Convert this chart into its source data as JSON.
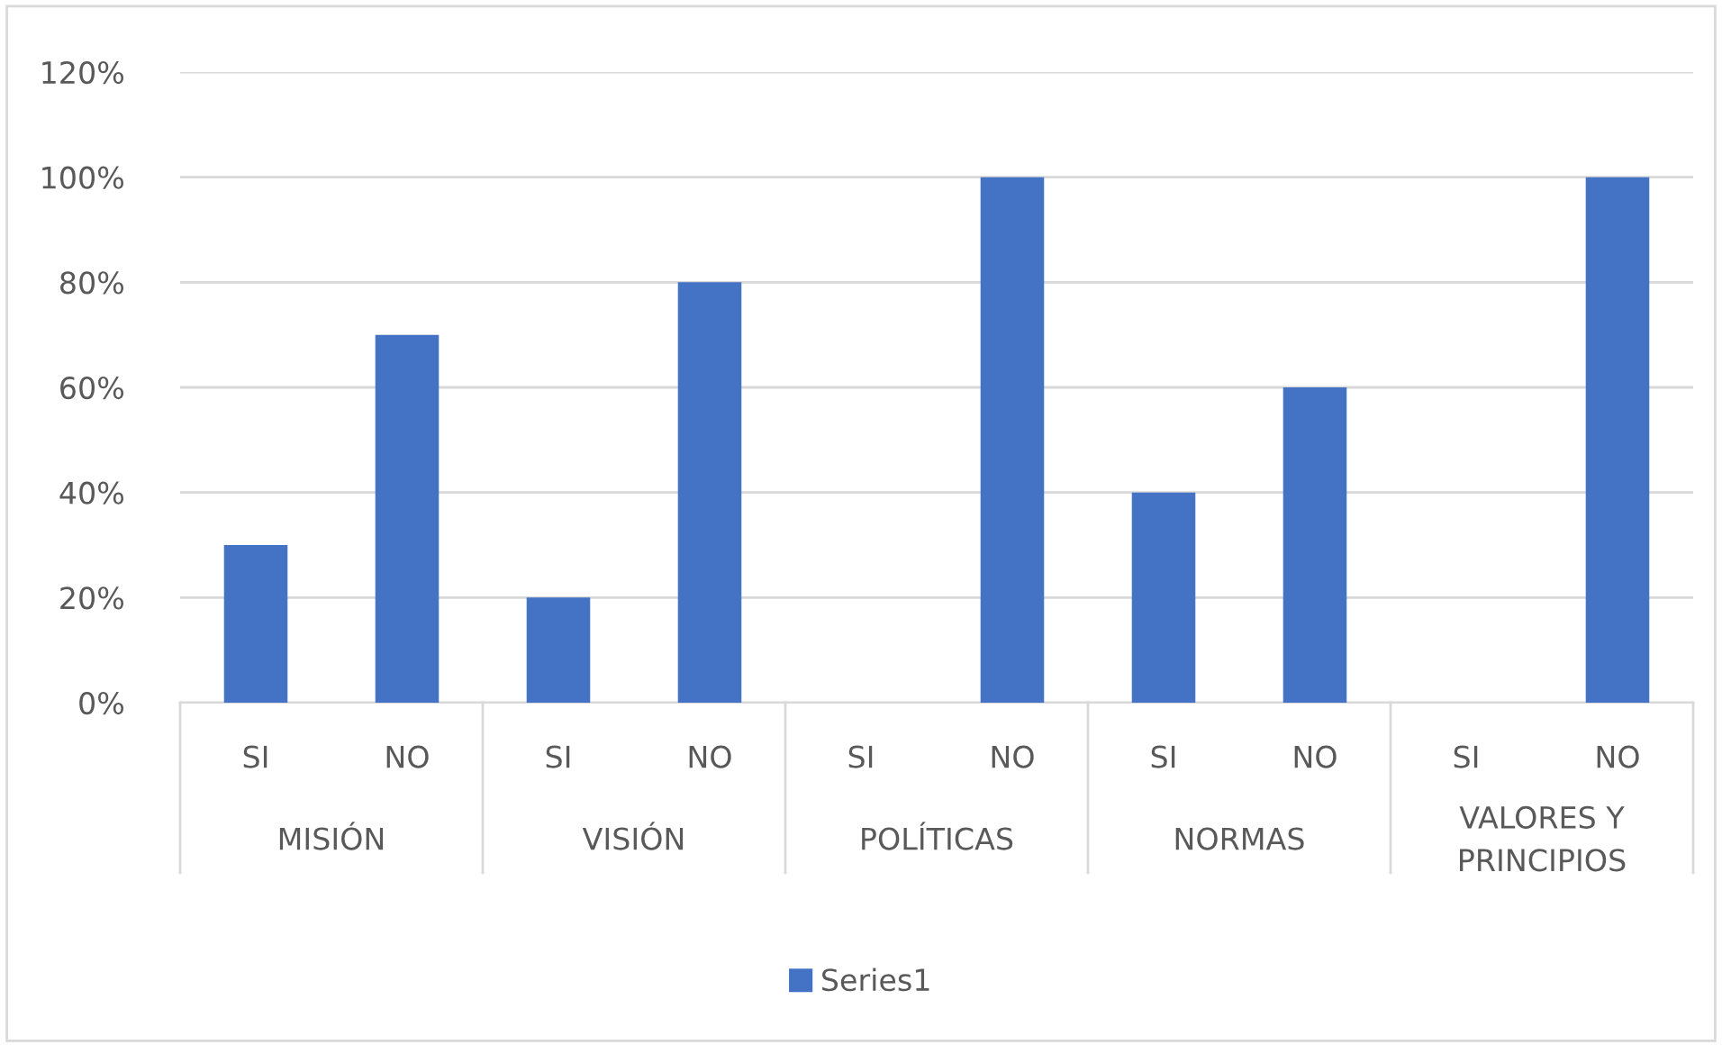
{
  "chart_data": {
    "type": "bar",
    "categories": [
      "SI",
      "NO",
      "SI",
      "NO",
      "SI",
      "NO",
      "SI",
      "NO",
      "SI",
      "NO"
    ],
    "annotations": [
      "MISIÓN",
      "VISIÓN",
      "POLÍTICAS",
      "NORMAS",
      "VALORES Y\nPRINCIPIOS"
    ],
    "series": [
      {
        "name": "Series1",
        "color": "#4472c4",
        "values": [
          30,
          70,
          20,
          80,
          0,
          100,
          40,
          60,
          0,
          100
        ]
      }
    ],
    "ylim": [
      0,
      120
    ],
    "yticks": [
      {
        "value": 0,
        "label": "0%"
      },
      {
        "value": 20,
        "label": "20%"
      },
      {
        "value": 40,
        "label": "40%"
      },
      {
        "value": 60,
        "label": "60%"
      },
      {
        "value": 80,
        "label": "80%"
      },
      {
        "value": 100,
        "label": "100%"
      },
      {
        "value": 120,
        "label": "120%"
      }
    ],
    "grid": "y",
    "legend": "bottom"
  }
}
